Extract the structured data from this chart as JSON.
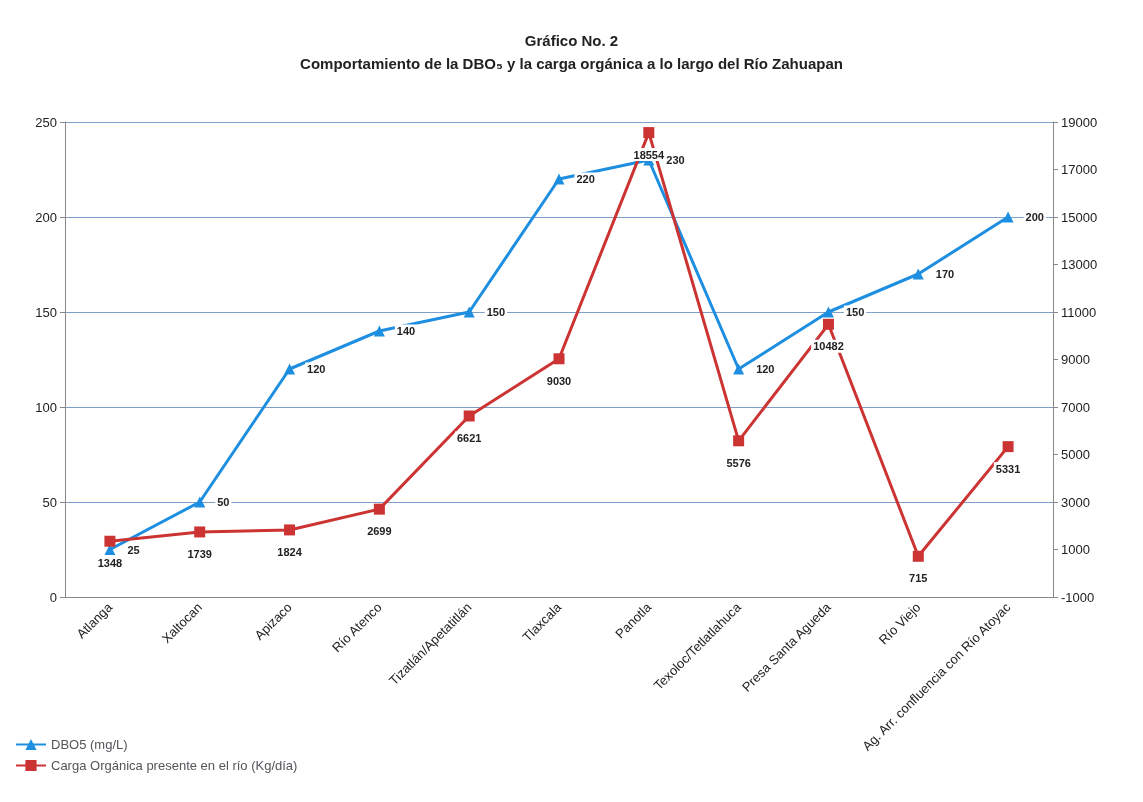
{
  "chart_data": {
    "type": "line",
    "title": "Gráfico No. 2",
    "subtitle": "Comportamiento de la DBO₅ y la carga orgánica a lo largo del Río Zahuapan",
    "categories": [
      "Atlanga",
      "Xaltocan",
      "Apizaco",
      "Río Atenco",
      "Tizatlán/Apetatitlán",
      "Tlaxcala",
      "Panotla",
      "Texoloc/Tetlatlahuca",
      "Presa Santa Agueda",
      "Río Viejo",
      "Ag. Arr. confluencia con Río Atoyac"
    ],
    "series": [
      {
        "name": "DBO5 (mg/L)",
        "color": "#1e8fe0",
        "marker": "triangle",
        "values": [
          25,
          50,
          120,
          140,
          150,
          220,
          230,
          120,
          150,
          170,
          200
        ]
      },
      {
        "name": "Carga Orgánica presente en el río (Kg/día)",
        "color": "#cc3333",
        "marker": "square",
        "axis": "y2",
        "values": [
          1348,
          1739,
          1824,
          2699,
          6621,
          9030,
          18554,
          5576,
          10482,
          715,
          5331
        ]
      }
    ],
    "ylim": [
      0,
      250
    ],
    "yticks": [
      0,
      50,
      100,
      150,
      200,
      250
    ],
    "y2lim": [
      -1000,
      19000
    ],
    "y2ticks": [
      -1000,
      1000,
      3000,
      5000,
      7000,
      9000,
      11000,
      13000,
      15000,
      17000,
      19000
    ],
    "grid": "y",
    "legend": "bottom left",
    "data_labels": true
  }
}
